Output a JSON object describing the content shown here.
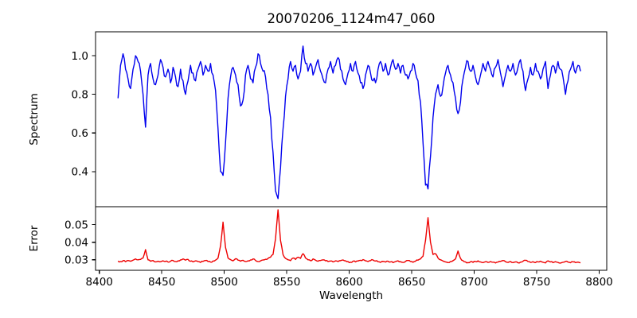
{
  "figure": {
    "title": "20070206_1124m47_060",
    "background_color": "#ffffff",
    "frame_color": "#000000",
    "text_color": "#000000"
  },
  "chart_data": [
    {
      "type": "line",
      "name": "spectrum",
      "title": "20070206_1124m47_060",
      "ylabel": "Spectrum",
      "line_color": "#0000ee",
      "legend": "none",
      "grid": false,
      "xlim": [
        8397,
        8806
      ],
      "ylim": [
        0.218,
        1.124
      ],
      "yticks": [
        0.4,
        0.6,
        0.8,
        1.0
      ],
      "ytick_labels": [
        "0.4",
        "0.6",
        "0.8",
        "1.0"
      ],
      "x_start": 8415,
      "x_step": 2,
      "values": [
        0.78,
        0.95,
        1.01,
        0.93,
        0.88,
        0.83,
        0.93,
        1.0,
        0.97,
        0.92,
        0.8,
        0.63,
        0.9,
        0.96,
        0.88,
        0.85,
        0.9,
        0.98,
        0.94,
        0.89,
        0.93,
        0.86,
        0.94,
        0.89,
        0.84,
        0.93,
        0.87,
        0.8,
        0.87,
        0.95,
        0.91,
        0.87,
        0.93,
        0.97,
        0.9,
        0.95,
        0.92,
        0.96,
        0.9,
        0.82,
        0.62,
        0.4,
        0.38,
        0.55,
        0.78,
        0.89,
        0.94,
        0.9,
        0.85,
        0.74,
        0.77,
        0.9,
        0.95,
        0.88,
        0.86,
        0.94,
        1.01,
        0.96,
        0.92,
        0.89,
        0.8,
        0.68,
        0.5,
        0.3,
        0.26,
        0.42,
        0.62,
        0.79,
        0.88,
        0.97,
        0.92,
        0.95,
        0.88,
        0.92,
        1.05,
        0.96,
        0.92,
        0.96,
        0.9,
        0.94,
        0.98,
        0.92,
        0.88,
        0.86,
        0.93,
        0.97,
        0.91,
        0.95,
        0.99,
        0.93,
        0.88,
        0.85,
        0.91,
        0.96,
        0.92,
        0.97,
        0.91,
        0.86,
        0.83,
        0.9,
        0.95,
        0.91,
        0.87,
        0.86,
        0.93,
        0.97,
        0.92,
        0.96,
        0.9,
        0.94,
        0.98,
        0.93,
        0.96,
        0.91,
        0.95,
        0.9,
        0.88,
        0.92,
        0.96,
        0.91,
        0.87,
        0.76,
        0.55,
        0.33,
        0.31,
        0.48,
        0.68,
        0.8,
        0.85,
        0.79,
        0.84,
        0.91,
        0.95,
        0.9,
        0.86,
        0.78,
        0.7,
        0.76,
        0.88,
        0.94,
        0.97,
        0.92,
        0.95,
        0.89,
        0.85,
        0.9,
        0.96,
        0.92,
        0.97,
        0.93,
        0.89,
        0.94,
        0.98,
        0.91,
        0.84,
        0.9,
        0.95,
        0.92,
        0.96,
        0.9,
        0.94,
        0.98,
        0.92,
        0.82,
        0.88,
        0.94,
        0.9,
        0.96,
        0.92,
        0.88,
        0.93,
        0.97,
        0.83,
        0.9,
        0.95,
        0.91,
        0.97,
        0.93,
        0.89,
        0.8,
        0.87,
        0.93,
        0.97,
        0.91,
        0.95,
        0.92
      ],
      "noise": {
        "amplitude": 0.02,
        "substeps": 2,
        "seed": 42
      },
      "features": {
        "absorption_lines": [
          {
            "wavelength": 8437,
            "depth": 0.63
          },
          {
            "wavelength": 8498,
            "depth": 0.38
          },
          {
            "wavelength": 8542,
            "depth": 0.26
          },
          {
            "wavelength": 8662,
            "depth": 0.31
          },
          {
            "wavelength": 8688,
            "depth": 0.7
          }
        ],
        "continuum_level": 0.95
      }
    },
    {
      "type": "line",
      "name": "error",
      "ylabel": "Error",
      "xlabel": "Wavelength",
      "line_color": "#ee0000",
      "legend": "none",
      "grid": false,
      "xlim": [
        8397,
        8806
      ],
      "ylim": [
        0.024,
        0.0603
      ],
      "yticks": [
        0.03,
        0.04,
        0.05
      ],
      "ytick_labels": [
        "0.03",
        "0.04",
        "0.05"
      ],
      "xticks": [
        8400,
        8450,
        8500,
        8550,
        8600,
        8650,
        8700,
        8750,
        8800
      ],
      "xtick_labels": [
        "8400",
        "8450",
        "8500",
        "8550",
        "8600",
        "8650",
        "8700",
        "8750",
        "8800"
      ],
      "x_start": 8415,
      "x_step": 2,
      "values": [
        0.0293,
        0.029,
        0.0295,
        0.0289,
        0.0296,
        0.0292,
        0.0298,
        0.0305,
        0.03,
        0.0302,
        0.031,
        0.0358,
        0.03,
        0.0292,
        0.0296,
        0.0288,
        0.0292,
        0.0289,
        0.0294,
        0.0291,
        0.0287,
        0.0292,
        0.0296,
        0.029,
        0.0294,
        0.0299,
        0.0305,
        0.0298,
        0.0302,
        0.0292,
        0.0288,
        0.0294,
        0.029,
        0.0285,
        0.0291,
        0.0296,
        0.029,
        0.0287,
        0.0293,
        0.0298,
        0.031,
        0.038,
        0.0515,
        0.037,
        0.031,
        0.0301,
        0.0294,
        0.0306,
        0.0298,
        0.0292,
        0.0297,
        0.029,
        0.0294,
        0.0299,
        0.0305,
        0.0296,
        0.029,
        0.0294,
        0.0299,
        0.0303,
        0.0308,
        0.0315,
        0.033,
        0.042,
        0.0585,
        0.041,
        0.033,
        0.0308,
        0.03,
        0.0295,
        0.031,
        0.0302,
        0.0315,
        0.0308,
        0.0335,
        0.031,
        0.03,
        0.0295,
        0.0305,
        0.0298,
        0.0292,
        0.0296,
        0.03,
        0.0294,
        0.029,
        0.0293,
        0.0288,
        0.0294,
        0.029,
        0.0295,
        0.0299,
        0.0294,
        0.029,
        0.0286,
        0.0292,
        0.0288,
        0.0293,
        0.0297,
        0.0301,
        0.0294,
        0.029,
        0.0295,
        0.0299,
        0.0293,
        0.0289,
        0.0285,
        0.0291,
        0.0287,
        0.0292,
        0.0288,
        0.0284,
        0.029,
        0.0294,
        0.0289,
        0.0285,
        0.0291,
        0.0296,
        0.029,
        0.0286,
        0.0292,
        0.0298,
        0.0305,
        0.032,
        0.041,
        0.054,
        0.04,
        0.033,
        0.0335,
        0.031,
        0.03,
        0.0293,
        0.0288,
        0.0284,
        0.029,
        0.0295,
        0.0305,
        0.035,
        0.0308,
        0.0295,
        0.0288,
        0.0284,
        0.0289,
        0.0285,
        0.029,
        0.0294,
        0.0288,
        0.0284,
        0.0289,
        0.0285,
        0.029,
        0.0286,
        0.0282,
        0.0287,
        0.0291,
        0.0296,
        0.0289,
        0.0285,
        0.029,
        0.0284,
        0.0288,
        0.0283,
        0.0287,
        0.0292,
        0.0297,
        0.029,
        0.0285,
        0.0289,
        0.0284,
        0.0288,
        0.0292,
        0.0286,
        0.0282,
        0.0294,
        0.0288,
        0.0284,
        0.0289,
        0.0285,
        0.0281,
        0.0286,
        0.0291,
        0.0287,
        0.0283,
        0.0288,
        0.0284,
        0.0287,
        0.0283
      ],
      "noise": {
        "amplitude": 0.0004,
        "substeps": 2,
        "seed": 7
      },
      "features": {
        "error_spikes": [
          {
            "wavelength": 8437,
            "peak": 0.0358
          },
          {
            "wavelength": 8498,
            "peak": 0.0515
          },
          {
            "wavelength": 8542,
            "peak": 0.0585
          },
          {
            "wavelength": 8662,
            "peak": 0.054
          },
          {
            "wavelength": 8688,
            "peak": 0.035
          }
        ],
        "baseline_level": 0.029
      }
    }
  ]
}
